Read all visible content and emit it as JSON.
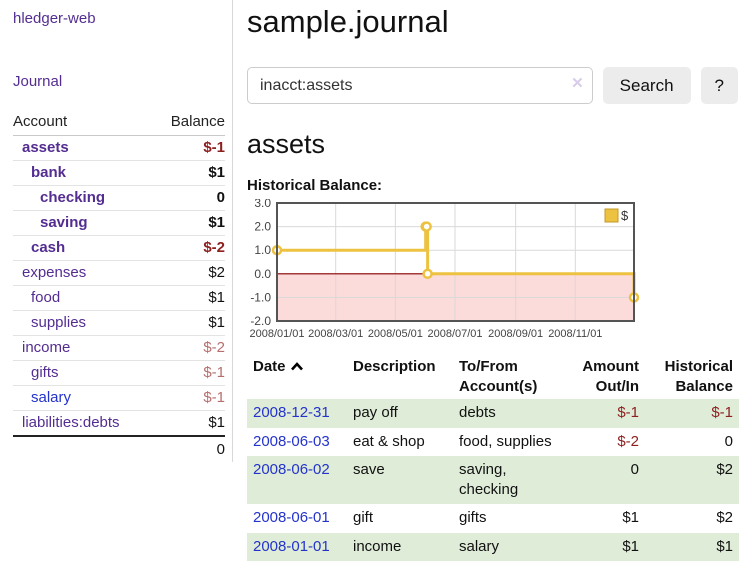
{
  "sidebar": {
    "app_title": "hledger-web",
    "nav": {
      "journal": "Journal"
    },
    "accounts_table": {
      "headers": {
        "account": "Account",
        "balance": "Balance"
      },
      "accounts": [
        {
          "name": "assets",
          "depth": 1,
          "bold": true,
          "link_color": "purple",
          "balance": "$-1",
          "balance_style": "bal-neg-bold"
        },
        {
          "name": "bank",
          "depth": 2,
          "bold": true,
          "link_color": "purple",
          "balance": "$1",
          "balance_style": "bal-bold"
        },
        {
          "name": "checking",
          "depth": 3,
          "bold": true,
          "link_color": "purple",
          "balance": "0",
          "balance_style": "bal-bold"
        },
        {
          "name": "saving",
          "depth": 3,
          "bold": true,
          "link_color": "purple",
          "balance": "$1",
          "balance_style": "bal-bold"
        },
        {
          "name": "cash",
          "depth": 2,
          "bold": true,
          "link_color": "purple",
          "balance": "$-2",
          "balance_style": "bal-neg-bold"
        },
        {
          "name": "expenses",
          "depth": 1,
          "bold": false,
          "link_color": "purple",
          "balance": "$2",
          "balance_style": ""
        },
        {
          "name": "food",
          "depth": 2,
          "bold": false,
          "link_color": "purple",
          "balance": "$1",
          "balance_style": ""
        },
        {
          "name": "supplies",
          "depth": 2,
          "bold": false,
          "link_color": "purple",
          "balance": "$1",
          "balance_style": ""
        },
        {
          "name": "income",
          "depth": 1,
          "bold": false,
          "link_color": "purple",
          "balance": "$-2",
          "balance_style": "bal-neg"
        },
        {
          "name": "gifts",
          "depth": 2,
          "bold": false,
          "link_color": "purple",
          "balance": "$-1",
          "balance_style": "bal-neg"
        },
        {
          "name": "salary",
          "depth": 2,
          "bold": false,
          "link_color": "blue",
          "balance": "$-1",
          "balance_style": "bal-neg"
        },
        {
          "name": "liabilities:debts",
          "depth": 1,
          "bold": false,
          "link_color": "purple",
          "balance": "$1",
          "balance_style": ""
        }
      ],
      "total": "0"
    }
  },
  "main": {
    "title": "sample.journal",
    "search": {
      "value": "inacct:assets",
      "clear_icon": "✕",
      "button": "Search",
      "help_button": "?"
    },
    "account_heading": "assets",
    "chart_heading": "Historical Balance:"
  },
  "chart_data": {
    "type": "line",
    "title": "Historical Balance:",
    "series": [
      {
        "name": "$",
        "color": "#edc240",
        "step": true,
        "points": [
          {
            "date": "2008-01-01",
            "value": 1
          },
          {
            "date": "2008-06-01",
            "value": 2
          },
          {
            "date": "2008-06-02",
            "value": 2
          },
          {
            "date": "2008-06-03",
            "value": 0
          },
          {
            "date": "2008-12-31",
            "value": -1
          }
        ]
      }
    ],
    "xrange": [
      "2008-01-01",
      "2008-12-31"
    ],
    "ylim": [
      -2,
      3
    ],
    "yticks": [
      3,
      2,
      1,
      0,
      -1,
      -2
    ],
    "xticks": [
      {
        "label": "2008/01/01",
        "date": "2008-01-01"
      },
      {
        "label": "2008/03/01",
        "date": "2008-03-01"
      },
      {
        "label": "2008/05/01",
        "date": "2008-05-01"
      },
      {
        "label": "2008/07/01",
        "date": "2008-07-01"
      },
      {
        "label": "2008/09/01",
        "date": "2008-09-01"
      },
      {
        "label": "2008/11/01",
        "date": "2008-11-01"
      }
    ],
    "grid": true,
    "legend_position": "top-right",
    "negative_region_fill": "#fcdbdb",
    "zero_line_color": "#8b0000",
    "grid_color": "#d9d9d9",
    "border_color": "#545454",
    "marker": {
      "fill": "#ffffff",
      "stroke": "#edc240"
    }
  },
  "register": {
    "headers": {
      "date": "Date",
      "description": "Description",
      "accounts": "To/From Account(s)",
      "amount": "Amount Out/In",
      "balance": "Historical Balance"
    },
    "rows": [
      {
        "date": "2008-12-31",
        "description": "pay off",
        "accounts": "debts",
        "amount": "$-1",
        "amount_negative": true,
        "balance": "$-1",
        "balance_negative": true,
        "shaded": true
      },
      {
        "date": "2008-06-03",
        "description": "eat & shop",
        "accounts": "food, supplies",
        "amount": "$-2",
        "amount_negative": true,
        "balance": "0",
        "balance_negative": false,
        "shaded": false
      },
      {
        "date": "2008-06-02",
        "description": "save",
        "accounts": "saving, checking",
        "amount": "0",
        "amount_negative": false,
        "balance": "$2",
        "balance_negative": false,
        "shaded": true
      },
      {
        "date": "2008-06-01",
        "description": "gift",
        "accounts": "gifts",
        "amount": "$1",
        "amount_negative": false,
        "balance": "$2",
        "balance_negative": false,
        "shaded": false
      },
      {
        "date": "2008-01-01",
        "description": "income",
        "accounts": "salary",
        "amount": "$1",
        "amount_negative": false,
        "balance": "$1",
        "balance_negative": false,
        "shaded": true
      }
    ]
  },
  "colors": {
    "link_purple": "#542d91",
    "link_blue": "#2433cc",
    "negative_red": "#8d1f1f",
    "negative_faded_red": "#b66e6e",
    "row_green": "#dfecd8",
    "chart_gold": "#edc240",
    "chart_negative_pink": "#fcdbdb",
    "chart_zero_line": "#8b0000",
    "button_gray": "#ececec"
  }
}
